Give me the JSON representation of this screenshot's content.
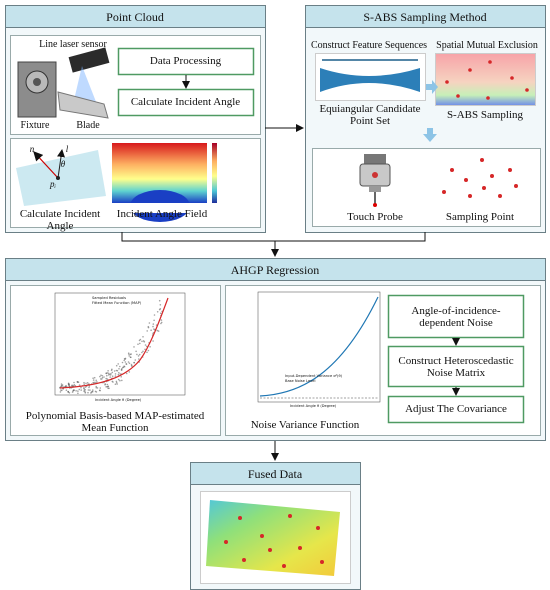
{
  "point_cloud": {
    "title": "Point Cloud",
    "sensor_label": "Line laser sensor",
    "fixture_label": "Fixture",
    "blade_label": "Blade",
    "steps": [
      "Data Processing",
      "Calculate Incident Angle"
    ],
    "symbols": [
      "n",
      "l",
      "θ",
      "pᵢ"
    ],
    "angle_caption": "Calculate Incident Angle",
    "field_caption": "Incident Angle Field"
  },
  "s_abs": {
    "title": "S-ABS Sampling Method",
    "feature_label": "Construct Feature Sequences",
    "exclusion_label": "Spatial Mutual Exclusion",
    "candidate_caption": "Equiangular Candidate Point Set",
    "sampling_caption": "S-ABS Sampling",
    "probe_caption": "Touch Probe",
    "point_caption": "Sampling Point"
  },
  "ahgp": {
    "title": "AHGP Regression",
    "mean_plot": {
      "legend": [
        "Sampled Residuals",
        "Fitted Mean Function (MAP)"
      ],
      "x_label": "Incident Angle θ (Degree)"
    },
    "variance_plot": {
      "legend": [
        "Input-Dependent Variance σ²(θ)",
        "Base Noise Level"
      ],
      "x_label": "Incident Angle θ (Degree)"
    },
    "mean_caption": "Polynomial Basis-based MAP-estimated Mean Function",
    "variance_caption": "Noise Variance Function",
    "steps": [
      "Angle-of-incidence-dependent Noise",
      "Construct Heteroscedastic Noise Matrix",
      "Adjust The Covariance"
    ]
  },
  "fused": {
    "title": "Fused Data"
  }
}
